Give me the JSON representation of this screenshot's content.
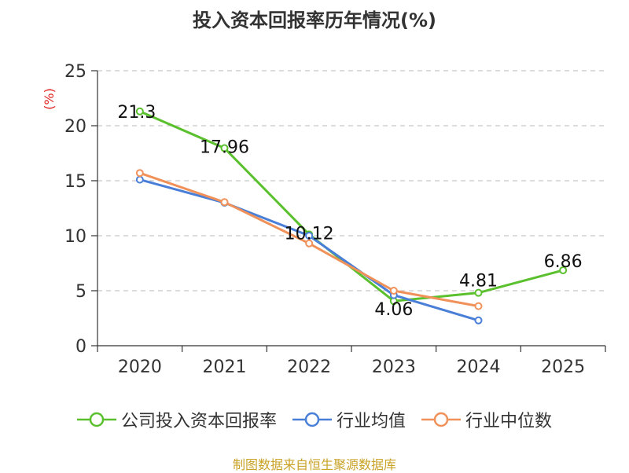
{
  "chart_data": {
    "type": "line",
    "title": "投入资本回报率历年情况(%)",
    "ylabel": "(%)",
    "xlabel": "",
    "categories": [
      "2020",
      "2021",
      "2022",
      "2023",
      "2024",
      "2025"
    ],
    "ylim": [
      0,
      25
    ],
    "yticks": [
      0,
      5,
      10,
      15,
      20,
      25
    ],
    "grid": true,
    "legend_position": "bottom",
    "series": [
      {
        "name": "公司投入资本回报率",
        "color": "#5bc02e",
        "values": [
          21.3,
          17.96,
          10.12,
          4.06,
          4.81,
          6.86
        ],
        "labels": [
          "21.3",
          "17.96",
          "10.12",
          "4.06",
          "4.81",
          "6.86"
        ]
      },
      {
        "name": "行业均值",
        "color": "#4a7fd8",
        "values": [
          15.1,
          13.0,
          10.0,
          4.6,
          2.3,
          null
        ]
      },
      {
        "name": "行业中位数",
        "color": "#f0915a",
        "values": [
          15.7,
          13.05,
          9.3,
          5.0,
          3.6,
          null
        ]
      }
    ],
    "source": "制图数据来自恒生聚源数据库"
  }
}
